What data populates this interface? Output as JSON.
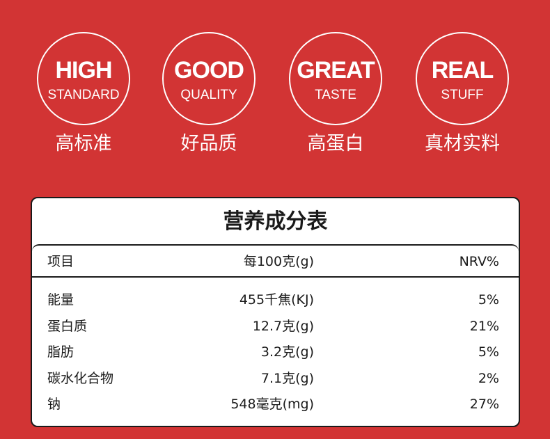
{
  "badges": [
    {
      "main": "HIGH",
      "sub": "STANDARD",
      "cn": "高标准"
    },
    {
      "main": "GOOD",
      "sub": "QUALITY",
      "cn": "好品质"
    },
    {
      "main": "GREAT",
      "sub": "TASTE",
      "cn": "高蛋白"
    },
    {
      "main": "REAL",
      "sub": "STUFF",
      "cn": "真材实料"
    }
  ],
  "nutrition": {
    "title": "营养成分表",
    "headers": [
      "项目",
      "每100克(g)",
      "NRV%"
    ],
    "rows": [
      {
        "item": "能量",
        "per100": "455千焦(KJ)",
        "nrv": "5%"
      },
      {
        "item": "蛋白质",
        "per100": "12.7克(g)",
        "nrv": "21%"
      },
      {
        "item": "脂肪",
        "per100": "3.2克(g)",
        "nrv": "5%"
      },
      {
        "item": "碳水化合物",
        "per100": "7.1克(g)",
        "nrv": "2%"
      },
      {
        "item": "钠",
        "per100": "548毫克(mg)",
        "nrv": "27%"
      }
    ]
  },
  "colors": {
    "background": "#d23434",
    "panel": "#ffffff",
    "text": "#1a1a1a"
  }
}
